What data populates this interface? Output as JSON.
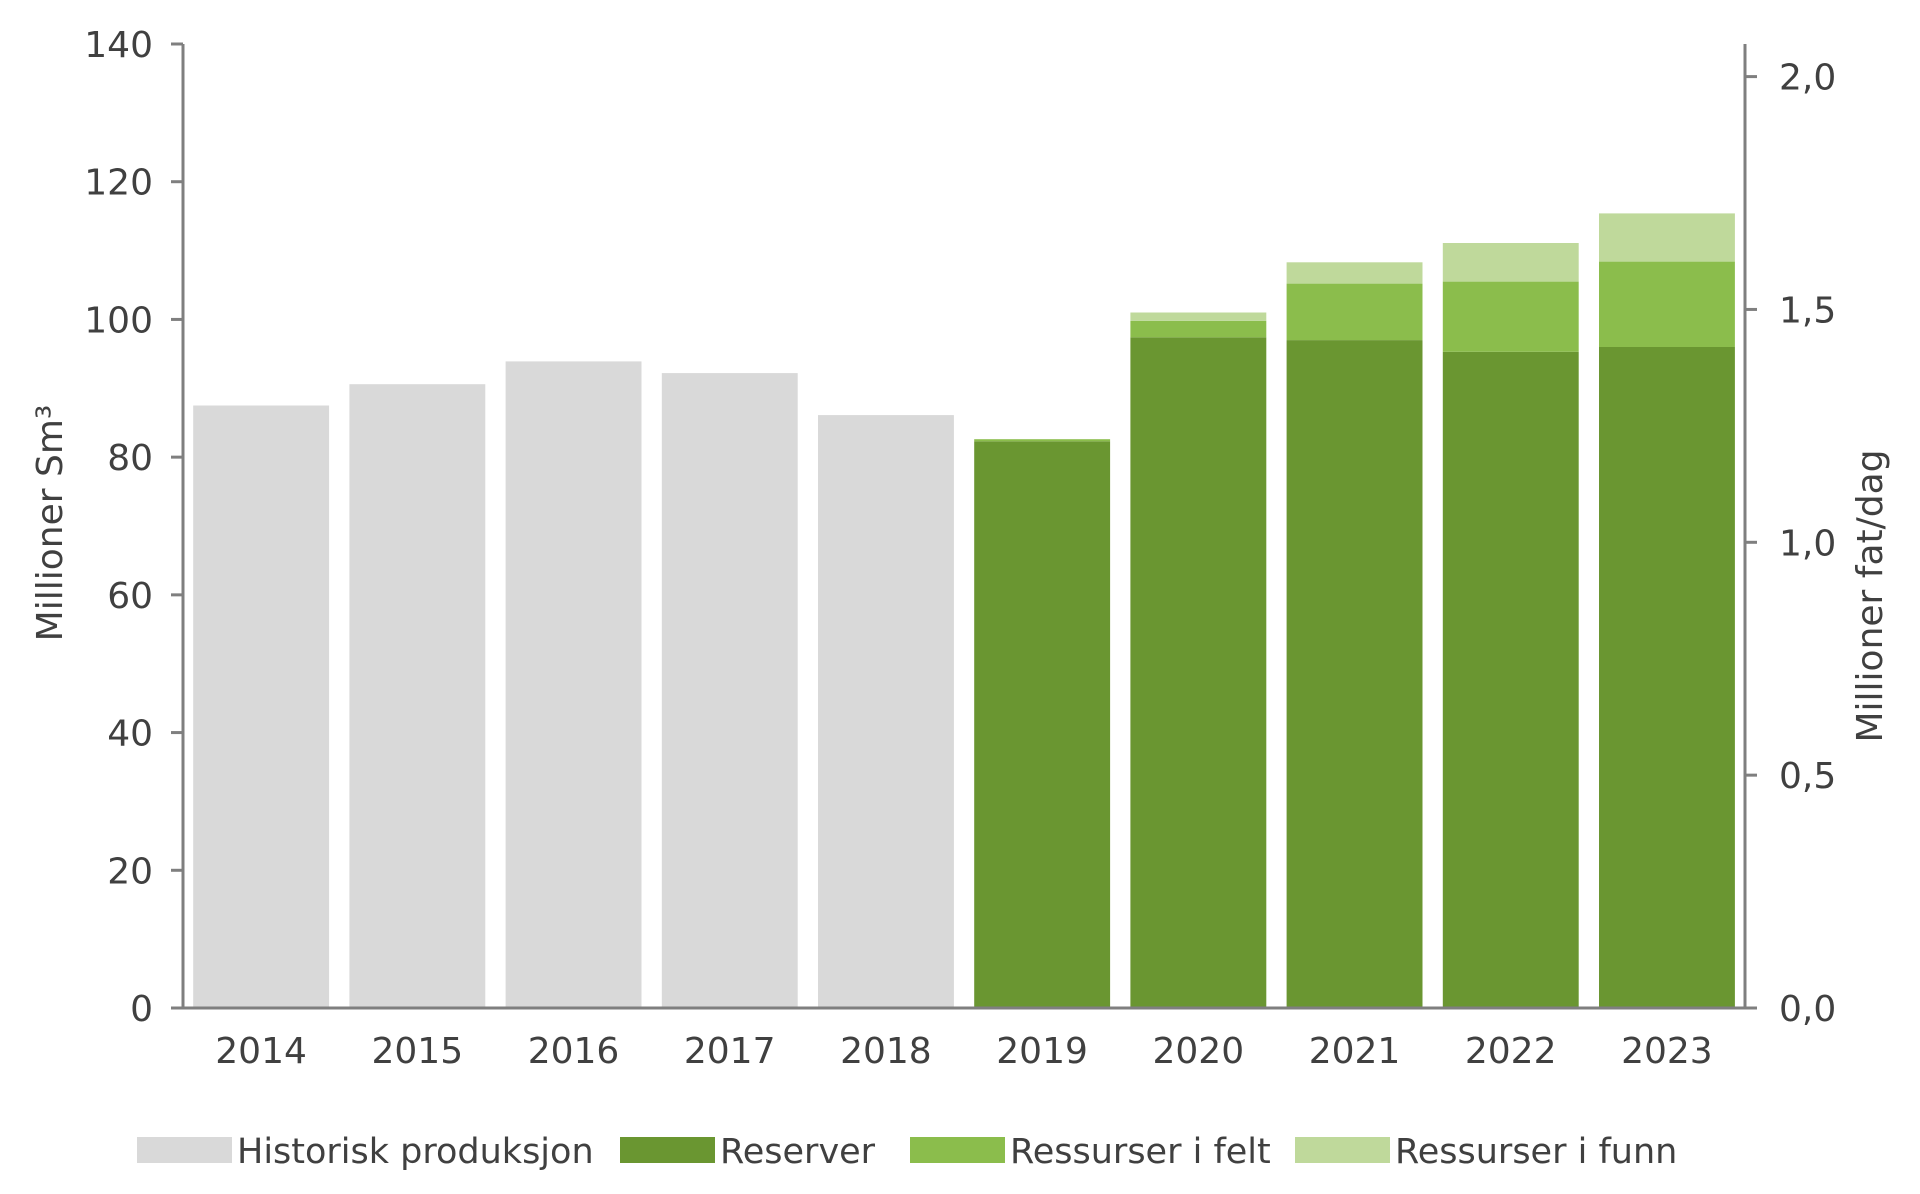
{
  "chart_data": {
    "type": "bar",
    "stacked": true,
    "categories": [
      "2014",
      "2015",
      "2016",
      "2017",
      "2018",
      "2019",
      "2020",
      "2021",
      "2022",
      "2023"
    ],
    "series": [
      {
        "name": "Historisk produksjon",
        "color": "#d9d9d9",
        "values": [
          87.5,
          90.6,
          93.9,
          92.2,
          86.1,
          0,
          0,
          0,
          0,
          0
        ]
      },
      {
        "name": "Reserver",
        "color": "#6a9631",
        "values": [
          0,
          0,
          0,
          0,
          0,
          82.3,
          97.4,
          97.0,
          95.3,
          96.0
        ]
      },
      {
        "name": "Ressurser i felt",
        "color": "#8bbd4c",
        "values": [
          0,
          0,
          0,
          0,
          0,
          0.3,
          2.4,
          8.2,
          10.2,
          12.4
        ]
      },
      {
        "name": "Ressurser i funn",
        "color": "#bfd99b",
        "values": [
          0,
          0,
          0,
          0,
          0,
          0,
          1.2,
          3.1,
          5.6,
          7.0
        ]
      }
    ],
    "y_left": {
      "label": "Millioner  Sm³",
      "range": [
        0,
        140
      ],
      "ticks": [
        "0",
        "20",
        "40",
        "60",
        "80",
        "100",
        "120",
        "140"
      ]
    },
    "y_right": {
      "label": "Millioner fat/dag",
      "range": [
        0.0,
        2.07
      ],
      "ticks": [
        "0,0",
        "0,5",
        "1,0",
        "1,5",
        "2,0"
      ]
    },
    "grid": false,
    "legend_position": "bottom"
  }
}
